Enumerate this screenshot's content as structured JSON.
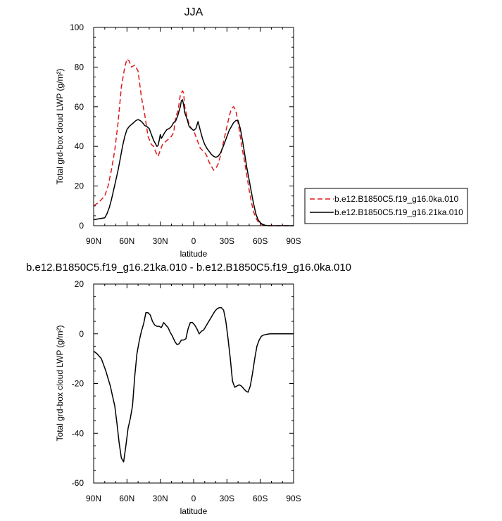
{
  "chart_data": [
    {
      "type": "line",
      "title": "JJA",
      "xlabel": "latitude",
      "ylabel": "Total grd-box cloud LWP (g/m²)",
      "xlim": [
        90,
        -90
      ],
      "ylim": [
        0,
        100
      ],
      "xticks": [
        90,
        60,
        30,
        0,
        -30,
        -60,
        -90
      ],
      "xtick_labels": [
        "90N",
        "60N",
        "30N",
        "0",
        "30S",
        "60S",
        "90S"
      ],
      "yticks": [
        0,
        20,
        40,
        60,
        80,
        100
      ],
      "grid": false,
      "legend_position": "right",
      "series": [
        {
          "name": "b.e12.B1850C5.f19_g16.0ka.010",
          "color": "#e0191b",
          "dash": "dashed",
          "x": [
            90,
            85,
            80,
            77,
            74,
            71,
            68,
            65,
            62,
            60,
            58,
            56,
            53,
            50,
            47,
            44,
            41,
            38,
            36,
            34,
            32,
            30,
            28,
            26,
            24,
            22,
            20,
            18,
            16,
            14,
            12,
            10,
            9,
            8,
            6,
            4,
            2,
            0,
            -2,
            -4,
            -6,
            -8,
            -10,
            -12,
            -14,
            -16,
            -18,
            -20,
            -22,
            -24,
            -26,
            -28,
            -30,
            -32,
            -34,
            -36,
            -38,
            -40,
            -42,
            -44,
            -46,
            -48,
            -50,
            -52,
            -54,
            -56,
            -58,
            -60,
            -62,
            -64,
            -66,
            -68,
            -70,
            -72,
            -74,
            -76,
            -78,
            -80,
            -90
          ],
          "y": [
            10,
            12,
            15,
            20,
            28,
            38,
            52,
            70,
            80,
            84,
            83,
            80,
            81,
            78,
            65,
            56,
            45,
            41,
            40,
            37,
            35,
            38,
            41,
            42,
            43,
            44,
            45,
            47,
            55,
            58,
            66,
            68,
            67,
            60,
            55,
            51,
            49,
            48,
            45,
            42,
            39,
            38,
            37,
            35,
            32,
            30,
            28,
            29,
            31,
            35,
            40,
            45,
            50,
            55,
            59,
            60,
            58,
            52,
            45,
            38,
            32,
            25,
            18,
            12,
            7,
            4,
            2,
            1,
            0.5,
            0.2,
            0,
            0,
            0,
            0,
            0,
            0,
            0,
            0,
            0
          ]
        },
        {
          "name": "b.e12.B1850C5.f19_g16.21ka.010",
          "color": "#000000",
          "dash": "solid",
          "x": [
            90,
            85,
            80,
            78,
            76,
            74,
            72,
            70,
            68,
            66,
            64,
            62,
            60,
            58,
            56,
            54,
            52,
            50,
            48,
            46,
            44,
            42,
            40,
            38,
            36,
            34,
            33,
            32,
            31,
            30,
            29,
            28,
            26,
            24,
            22,
            20,
            18,
            16,
            14,
            12,
            11,
            10,
            9,
            8,
            6,
            4,
            2,
            0,
            -2,
            -4,
            -6,
            -8,
            -10,
            -12,
            -14,
            -16,
            -18,
            -20,
            -22,
            -24,
            -26,
            -28,
            -30,
            -32,
            -34,
            -36,
            -38,
            -40,
            -42,
            -44,
            -46,
            -48,
            -50,
            -52,
            -54,
            -56,
            -58,
            -60,
            -62,
            -64,
            -66,
            -68,
            -70,
            -75,
            -80,
            -90
          ],
          "y": [
            3,
            3.5,
            4,
            6,
            9,
            13,
            18,
            23,
            28,
            34,
            40,
            45,
            48.5,
            50,
            51,
            52,
            53,
            53.5,
            53,
            52,
            50.5,
            50,
            49,
            46,
            43,
            41,
            40,
            40.5,
            43,
            46,
            44,
            45,
            47,
            48.5,
            49,
            50,
            52,
            53,
            56,
            60,
            63,
            63.5,
            61,
            57,
            54,
            50,
            49,
            48,
            49,
            52.5,
            48,
            44,
            41,
            39,
            37.5,
            36,
            35,
            34.5,
            35,
            36.5,
            39,
            42,
            45,
            48,
            50,
            52,
            53,
            53,
            49,
            43,
            36,
            29,
            23,
            17,
            11,
            6,
            3,
            1.5,
            0.7,
            0.3,
            0.1,
            0,
            0,
            0,
            0,
            0
          ]
        }
      ]
    },
    {
      "type": "line",
      "title": "b.e12.B1850C5.f19_g16.21ka.010 - b.e12.B1850C5.f19_g16.0ka.010",
      "xlabel": "latitude",
      "ylabel": "Total grd-box cloud LWP (g/m²)",
      "xlim": [
        90,
        -90
      ],
      "ylim": [
        -60,
        20
      ],
      "xticks": [
        90,
        60,
        30,
        0,
        -30,
        -60,
        -90
      ],
      "xtick_labels": [
        "90N",
        "60N",
        "30N",
        "0",
        "30S",
        "60S",
        "90S"
      ],
      "yticks": [
        -60,
        -40,
        -20,
        0,
        20
      ],
      "grid": false,
      "series": [
        {
          "color": "#000000",
          "dash": "solid",
          "x": [
            90,
            87,
            85,
            83,
            81,
            79,
            77,
            75,
            73,
            71,
            69,
            67,
            65,
            63,
            61,
            59,
            57,
            55,
            53,
            51,
            49,
            47,
            45,
            43,
            41,
            39,
            37,
            35,
            33,
            31,
            29,
            27,
            25,
            23,
            21,
            19,
            17,
            15,
            13,
            11,
            9,
            7,
            5,
            3,
            1,
            -1,
            -3,
            -5,
            -7,
            -9,
            -11,
            -13,
            -15,
            -17,
            -19,
            -21,
            -23,
            -25,
            -27,
            -29,
            -31,
            -33,
            -35,
            -37,
            -39,
            -41,
            -43,
            -45,
            -47,
            -49,
            -51,
            -53,
            -55,
            -57,
            -59,
            -61,
            -63,
            -65,
            -67,
            -69,
            -71,
            -73,
            -75,
            -80,
            -85,
            -90
          ],
          "y": [
            -7,
            -8,
            -9,
            -10,
            -12.5,
            -15,
            -18,
            -21,
            -25,
            -29,
            -36,
            -44,
            -50,
            -51.5,
            -45,
            -38,
            -34,
            -29,
            -17,
            -8,
            -3,
            1,
            4,
            8.5,
            8.5,
            7.5,
            5,
            3.5,
            3,
            3,
            2.5,
            4.5,
            3.5,
            2.5,
            0.5,
            -1,
            -3,
            -4.3,
            -4,
            -2.5,
            -2.5,
            -2,
            2,
            4.5,
            4.5,
            3.5,
            2,
            0,
            1,
            1.5,
            3,
            4.5,
            6,
            7.5,
            9,
            10,
            10.5,
            10.5,
            9.5,
            5,
            -2,
            -10,
            -19,
            -21.5,
            -21,
            -20.5,
            -21,
            -22,
            -23,
            -23.5,
            -21,
            -16,
            -10,
            -5,
            -2.5,
            -1,
            -0.5,
            -0.3,
            -0.1,
            0,
            0,
            0,
            0,
            0,
            0,
            0
          ]
        }
      ]
    }
  ]
}
